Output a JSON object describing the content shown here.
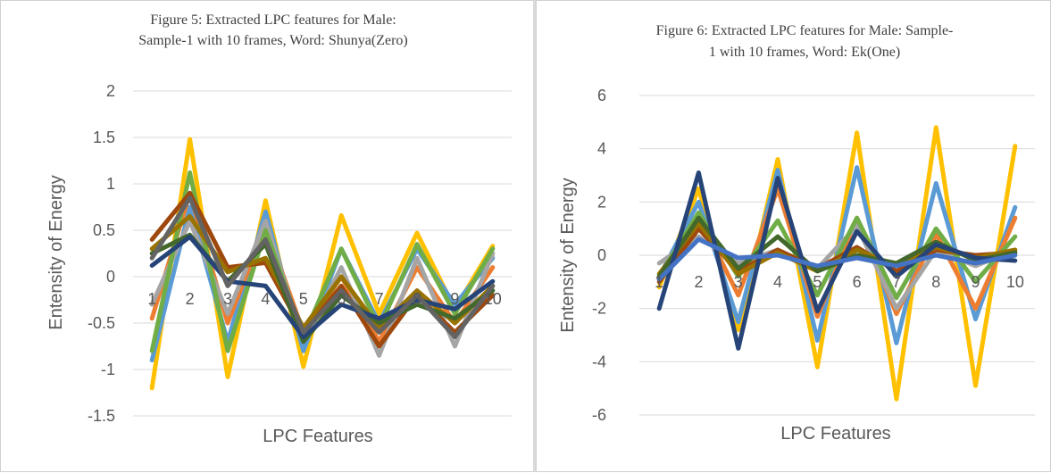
{
  "chart_data": [
    {
      "type": "line",
      "title_lines": [
        "Figure 5: Extracted LPC features for Male:",
        "Sample-1 with 10 frames,  Word: Shunya(Zero)"
      ],
      "xlabel": "LPC Features",
      "ylabel": "Entensity of Energy",
      "categories": [
        "1",
        "2",
        "3",
        "4",
        "5",
        "6",
        "7",
        "8",
        "9",
        "10"
      ],
      "y_ticks": [
        "2",
        "1.5",
        "1",
        "0.5",
        "0",
        "-0.5",
        "-1",
        "-1.5"
      ],
      "ylim": [
        -1.5,
        2
      ],
      "grid": true,
      "legend": "none",
      "series": [
        {
          "color": "#ffc000",
          "values": [
            -1.2,
            1.48,
            -1.08,
            0.82,
            -0.97,
            0.66,
            -0.4,
            0.47,
            -0.35,
            0.33
          ]
        },
        {
          "color": "#5b9bd5",
          "values": [
            -0.9,
            0.75,
            -0.7,
            0.7,
            -0.8,
            0.3,
            -0.5,
            0.3,
            -0.3,
            0.2
          ]
        },
        {
          "color": "#ed7d31",
          "values": [
            -0.45,
            0.9,
            -0.5,
            0.55,
            -0.6,
            0.0,
            -0.7,
            0.1,
            -0.5,
            0.1
          ]
        },
        {
          "color": "#a5a5a5",
          "values": [
            -0.3,
            0.6,
            -0.4,
            0.6,
            -0.7,
            0.1,
            -0.85,
            0.2,
            -0.75,
            0.25
          ]
        },
        {
          "color": "#70ad47",
          "values": [
            -0.8,
            1.12,
            -0.8,
            0.5,
            -0.65,
            0.3,
            -0.55,
            0.35,
            -0.4,
            0.3
          ]
        },
        {
          "color": "#9e480e",
          "values": [
            0.4,
            0.9,
            0.1,
            0.15,
            -0.6,
            -0.1,
            -0.75,
            -0.2,
            -0.6,
            -0.2
          ]
        },
        {
          "color": "#997300",
          "values": [
            0.3,
            0.65,
            0.05,
            0.2,
            -0.55,
            0.0,
            -0.55,
            -0.15,
            -0.5,
            -0.1
          ]
        },
        {
          "color": "#43682b",
          "values": [
            0.25,
            0.45,
            -0.05,
            0.35,
            -0.7,
            -0.2,
            -0.5,
            -0.3,
            -0.45,
            -0.15
          ]
        },
        {
          "color": "#264478",
          "values": [
            0.12,
            0.43,
            -0.05,
            -0.1,
            -0.65,
            -0.3,
            -0.45,
            -0.25,
            -0.35,
            -0.05
          ]
        },
        {
          "color": "#636363",
          "values": [
            0.2,
            0.85,
            -0.1,
            0.4,
            -0.6,
            -0.15,
            -0.6,
            -0.2,
            -0.65,
            -0.1
          ]
        }
      ]
    },
    {
      "type": "line",
      "title_lines": [
        "Figure 6: Extracted LPC features for Male: Sample-",
        "1 with 10 frames,  Word: Ek(One)"
      ],
      "xlabel": "LPC Features",
      "ylabel": "Entensity of Energy",
      "categories": [
        "1",
        "2",
        "3",
        "4",
        "5",
        "6",
        "7",
        "8",
        "9",
        "10"
      ],
      "y_ticks": [
        "6",
        "4",
        "2",
        "0",
        "-2",
        "-4",
        "-6"
      ],
      "ylim": [
        -6,
        6
      ],
      "grid": true,
      "legend": "none",
      "series": [
        {
          "color": "#ffc000",
          "values": [
            -1.2,
            2.5,
            -2.8,
            3.6,
            -4.2,
            4.6,
            -5.4,
            4.8,
            -4.9,
            4.1
          ]
        },
        {
          "color": "#5b9bd5",
          "values": [
            -0.8,
            2.0,
            -2.5,
            3.2,
            -3.2,
            3.3,
            -3.3,
            2.7,
            -2.4,
            1.8
          ]
        },
        {
          "color": "#ed7d31",
          "values": [
            -0.9,
            1.5,
            -1.5,
            2.5,
            -2.3,
            1.4,
            -2.2,
            0.8,
            -2.0,
            1.4
          ]
        },
        {
          "color": "#a5a5a5",
          "values": [
            -0.3,
            0.7,
            -0.3,
            0.2,
            -0.5,
            1.1,
            -2.0,
            0.2,
            -0.4,
            0.2
          ]
        },
        {
          "color": "#70ad47",
          "values": [
            -0.8,
            1.6,
            -0.8,
            1.3,
            -1.5,
            1.4,
            -1.6,
            1.0,
            -1.0,
            0.7
          ]
        },
        {
          "color": "#9e480e",
          "values": [
            -1.0,
            1.0,
            -0.6,
            0.2,
            -0.5,
            0.3,
            -0.6,
            0.2,
            0.0,
            0.1
          ]
        },
        {
          "color": "#997300",
          "values": [
            -0.7,
            1.2,
            -0.7,
            0.1,
            -0.6,
            0.2,
            -0.4,
            0.3,
            -0.1,
            0.2
          ]
        },
        {
          "color": "#43682b",
          "values": [
            -0.8,
            1.4,
            -0.5,
            0.7,
            -0.6,
            0.0,
            -0.3,
            0.5,
            -0.2,
            0.1
          ]
        },
        {
          "color": "#264478",
          "values": [
            -2.0,
            3.1,
            -3.5,
            2.9,
            -2.1,
            0.9,
            -0.8,
            0.4,
            -0.1,
            -0.2
          ]
        },
        {
          "color": "#4472c4",
          "values": [
            -0.9,
            0.6,
            -0.1,
            0.0,
            -0.4,
            -0.1,
            -0.4,
            0.0,
            -0.3,
            0.0
          ]
        }
      ]
    }
  ]
}
